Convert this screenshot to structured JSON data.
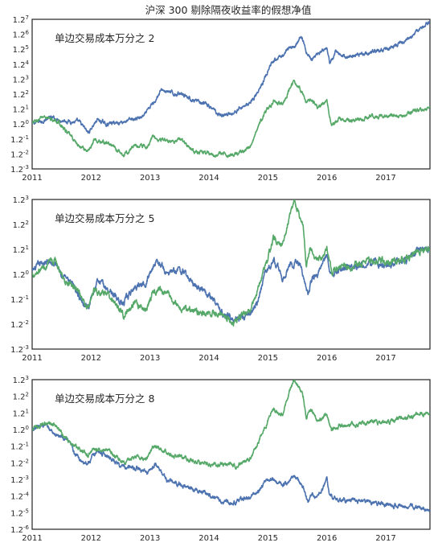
{
  "title": "沪深 300 剔除隔夜收益率的假想净值",
  "colors": {
    "blue": "#4c72b0",
    "green": "#55a868",
    "frame": "#222222"
  },
  "chart_data": [
    {
      "type": "line",
      "annotation": "单边交易成本万分之 2",
      "x_ticks": [
        "2011",
        "2012",
        "2013",
        "2014",
        "2015",
        "2016",
        "2017"
      ],
      "x_range": [
        2011.0,
        2017.75
      ],
      "y_scale": "log base 1.2",
      "y_ticks": [
        {
          "b": "1.2",
          "e": "-3"
        },
        {
          "b": "1.2",
          "e": "-2"
        },
        {
          "b": "1.2",
          "e": "-1"
        },
        {
          "b": "1.2",
          "e": "0"
        },
        {
          "b": "1.2",
          "e": "1"
        },
        {
          "b": "1.2",
          "e": "2"
        },
        {
          "b": "1.2",
          "e": "3"
        },
        {
          "b": "1.2",
          "e": "4"
        },
        {
          "b": "1.2",
          "e": "5"
        },
        {
          "b": "1.2",
          "e": "6"
        },
        {
          "b": "1.2",
          "e": "7"
        }
      ],
      "y_range_exponent": [
        -3,
        7
      ],
      "series": [
        {
          "color": "blue",
          "x": [
            2011.0,
            2011.3,
            2011.55,
            2011.8,
            2011.95,
            2012.1,
            2012.25,
            2012.45,
            2012.7,
            2012.9,
            2013.05,
            2013.2,
            2013.4,
            2013.55,
            2013.75,
            2013.95,
            2014.2,
            2014.4,
            2014.55,
            2014.7,
            2014.85,
            2014.95,
            2015.05,
            2015.15,
            2015.25,
            2015.35,
            2015.45,
            2015.55,
            2015.6,
            2015.65,
            2015.72,
            2015.85,
            2016.0,
            2016.05,
            2016.15,
            2016.3,
            2016.5,
            2016.75,
            2017.0,
            2017.2,
            2017.4,
            2017.6,
            2017.75
          ],
          "y": [
            0.0,
            0.4,
            0.25,
            0.1,
            -0.6,
            0.3,
            0.0,
            0.1,
            0.3,
            0.5,
            1.4,
            2.3,
            2.0,
            2.1,
            1.5,
            1.3,
            0.6,
            0.7,
            1.1,
            1.5,
            2.2,
            3.1,
            3.9,
            4.3,
            4.6,
            5.0,
            5.2,
            5.8,
            5.6,
            4.8,
            4.4,
            4.7,
            4.9,
            4.0,
            4.8,
            4.5,
            4.6,
            4.8,
            5.0,
            5.3,
            5.8,
            6.4,
            6.9
          ]
        },
        {
          "color": "green",
          "x": [
            2011.0,
            2011.2,
            2011.45,
            2011.6,
            2011.8,
            2011.95,
            2012.05,
            2012.3,
            2012.55,
            2012.75,
            2012.95,
            2013.05,
            2013.3,
            2013.5,
            2013.75,
            2014.0,
            2014.25,
            2014.4,
            2014.55,
            2014.7,
            2014.8,
            2014.95,
            2015.1,
            2015.25,
            2015.35,
            2015.45,
            2015.52,
            2015.6,
            2015.65,
            2015.72,
            2015.85,
            2016.0,
            2016.08,
            2016.2,
            2016.4,
            2016.7,
            2017.0,
            2017.3,
            2017.5,
            2017.75
          ],
          "y": [
            0.0,
            0.5,
            0.1,
            -0.6,
            -1.5,
            -1.8,
            -1.1,
            -1.3,
            -2.1,
            -1.4,
            -1.5,
            -0.8,
            -1.2,
            -1.0,
            -1.8,
            -2.0,
            -2.0,
            -2.1,
            -1.9,
            -1.5,
            -0.6,
            0.8,
            1.5,
            1.2,
            2.2,
            2.9,
            2.5,
            2.0,
            1.4,
            1.7,
            1.1,
            1.6,
            -0.1,
            0.3,
            0.2,
            0.5,
            0.5,
            0.6,
            0.9,
            1.1
          ]
        }
      ]
    },
    {
      "type": "line",
      "annotation": "单边交易成本万分之 5",
      "x_ticks": [
        "2011",
        "2012",
        "2013",
        "2014",
        "2015",
        "2016",
        "2017"
      ],
      "x_range": [
        2011.0,
        2017.75
      ],
      "y_scale": "log base 1.2",
      "y_ticks": [
        {
          "b": "1.2",
          "e": "-3"
        },
        {
          "b": "1.2",
          "e": "-2"
        },
        {
          "b": "1.2",
          "e": "-1"
        },
        {
          "b": "1.2",
          "e": "0"
        },
        {
          "b": "1.2",
          "e": "1"
        },
        {
          "b": "1.2",
          "e": "2"
        },
        {
          "b": "1.2",
          "e": "3"
        }
      ],
      "y_range_exponent": [
        -3,
        3
      ],
      "series": [
        {
          "color": "blue",
          "x": [
            2011.0,
            2011.2,
            2011.4,
            2011.6,
            2011.8,
            2011.95,
            2012.1,
            2012.3,
            2012.55,
            2012.75,
            2012.95,
            2013.1,
            2013.3,
            2013.5,
            2013.75,
            2013.95,
            2014.2,
            2014.4,
            2014.55,
            2014.7,
            2014.85,
            2014.95,
            2015.1,
            2015.25,
            2015.35,
            2015.45,
            2015.55,
            2015.62,
            2015.68,
            2015.75,
            2015.85,
            2016.0,
            2016.08,
            2016.2,
            2016.5,
            2016.8,
            2017.0,
            2017.3,
            2017.55,
            2017.75
          ],
          "y": [
            0.1,
            0.5,
            0.4,
            -0.2,
            -0.9,
            -1.3,
            -0.3,
            -0.6,
            -1.2,
            -0.5,
            -0.2,
            0.6,
            0.0,
            0.2,
            -0.4,
            -0.6,
            -1.5,
            -1.8,
            -1.7,
            -1.6,
            -1.0,
            0.0,
            0.6,
            -0.2,
            0.3,
            0.5,
            0.4,
            -0.2,
            -0.8,
            -0.2,
            0.1,
            0.7,
            -0.1,
            0.2,
            0.3,
            0.4,
            0.4,
            0.5,
            0.9,
            1.0
          ]
        },
        {
          "color": "green",
          "x": [
            2011.0,
            2011.2,
            2011.4,
            2011.55,
            2011.75,
            2011.95,
            2012.05,
            2012.3,
            2012.55,
            2012.75,
            2012.95,
            2013.05,
            2013.3,
            2013.5,
            2013.75,
            2014.0,
            2014.2,
            2014.4,
            2014.55,
            2014.7,
            2014.8,
            2014.95,
            2015.1,
            2015.25,
            2015.35,
            2015.45,
            2015.52,
            2015.6,
            2015.65,
            2015.72,
            2015.85,
            2016.0,
            2016.08,
            2016.2,
            2016.4,
            2016.7,
            2017.0,
            2017.3,
            2017.55,
            2017.75
          ],
          "y": [
            0.0,
            0.3,
            0.5,
            -0.3,
            -0.6,
            -1.3,
            -0.6,
            -0.9,
            -1.6,
            -1.2,
            -1.4,
            -0.6,
            -0.8,
            -1.3,
            -1.5,
            -1.6,
            -1.6,
            -1.9,
            -1.7,
            -1.4,
            -0.8,
            0.4,
            1.4,
            1.1,
            2.2,
            2.9,
            2.5,
            1.9,
            0.4,
            1.1,
            0.5,
            1.0,
            0.0,
            0.4,
            0.3,
            0.5,
            0.5,
            0.6,
            0.9,
            1.1
          ]
        }
      ]
    },
    {
      "type": "line",
      "annotation": "单边交易成本万分之 8",
      "x_ticks": [
        "2011",
        "2012",
        "2013",
        "2014",
        "2015",
        "2016",
        "2017"
      ],
      "x_range": [
        2011.0,
        2017.75
      ],
      "y_scale": "log base 1.2",
      "y_ticks": [
        {
          "b": "1.2",
          "e": "-6"
        },
        {
          "b": "1.2",
          "e": "-5"
        },
        {
          "b": "1.2",
          "e": "-4"
        },
        {
          "b": "1.2",
          "e": "-3"
        },
        {
          "b": "1.2",
          "e": "-2"
        },
        {
          "b": "1.2",
          "e": "-1"
        },
        {
          "b": "1.2",
          "e": "0"
        },
        {
          "b": "1.2",
          "e": "1"
        },
        {
          "b": "1.2",
          "e": "2"
        },
        {
          "b": "1.2",
          "e": "3"
        }
      ],
      "y_range_exponent": [
        -6,
        3
      ],
      "series": [
        {
          "color": "blue",
          "x": [
            2011.0,
            2011.2,
            2011.4,
            2011.6,
            2011.8,
            2011.95,
            2012.1,
            2012.3,
            2012.55,
            2012.75,
            2012.95,
            2013.1,
            2013.3,
            2013.5,
            2013.75,
            2013.95,
            2014.2,
            2014.4,
            2014.55,
            2014.7,
            2014.85,
            2014.95,
            2015.1,
            2015.25,
            2015.35,
            2015.45,
            2015.52,
            2015.6,
            2015.68,
            2015.75,
            2015.85,
            2016.0,
            2016.05,
            2016.2,
            2016.5,
            2016.8,
            2017.0,
            2017.3,
            2017.55,
            2017.75
          ],
          "y": [
            0.0,
            0.3,
            -0.3,
            -0.7,
            -1.8,
            -2.0,
            -1.3,
            -1.6,
            -2.3,
            -2.3,
            -2.6,
            -2.1,
            -3.1,
            -3.3,
            -3.6,
            -3.8,
            -4.3,
            -4.4,
            -4.2,
            -4.1,
            -3.7,
            -3.1,
            -3.0,
            -3.3,
            -3.1,
            -2.8,
            -3.0,
            -3.5,
            -4.4,
            -3.9,
            -4.1,
            -3.0,
            -4.0,
            -4.2,
            -4.3,
            -4.4,
            -4.5,
            -4.6,
            -4.7,
            -4.8
          ]
        },
        {
          "color": "green",
          "x": [
            2011.0,
            2011.2,
            2011.4,
            2011.55,
            2011.75,
            2011.95,
            2012.05,
            2012.3,
            2012.55,
            2012.75,
            2012.95,
            2013.05,
            2013.3,
            2013.5,
            2013.75,
            2014.0,
            2014.2,
            2014.4,
            2014.55,
            2014.7,
            2014.8,
            2014.95,
            2015.1,
            2015.25,
            2015.35,
            2015.45,
            2015.52,
            2015.6,
            2015.65,
            2015.72,
            2015.85,
            2016.0,
            2016.08,
            2016.2,
            2016.4,
            2016.7,
            2017.0,
            2017.3,
            2017.55,
            2017.75
          ],
          "y": [
            0.0,
            0.4,
            0.2,
            -0.5,
            -1.0,
            -1.6,
            -1.1,
            -1.3,
            -2.0,
            -1.6,
            -1.7,
            -0.9,
            -1.4,
            -1.7,
            -1.9,
            -2.1,
            -2.1,
            -2.2,
            -2.1,
            -1.8,
            -1.1,
            0.2,
            1.2,
            0.9,
            2.1,
            2.9,
            2.6,
            2.0,
            0.6,
            1.2,
            0.4,
            1.0,
            -0.1,
            0.3,
            0.2,
            0.4,
            0.5,
            0.7,
            0.9,
            1.1
          ]
        }
      ]
    }
  ]
}
